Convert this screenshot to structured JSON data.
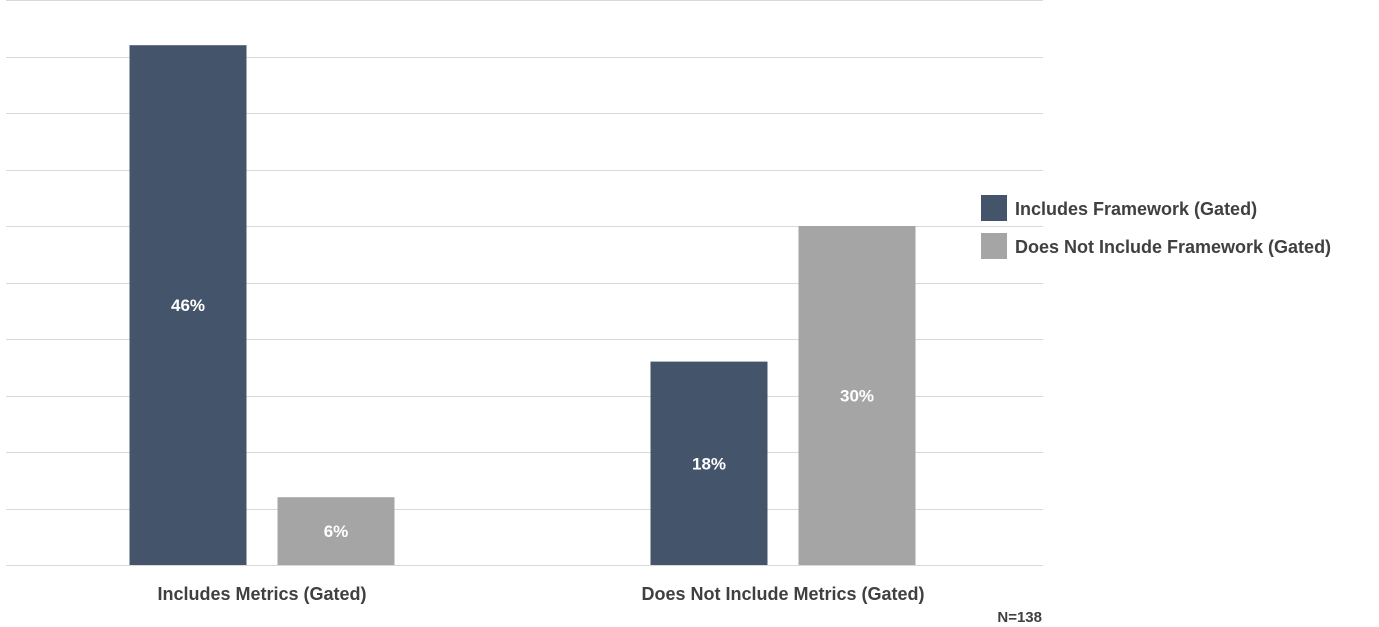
{
  "chart_data": {
    "type": "bar",
    "title": "",
    "xlabel": "",
    "ylabel": "",
    "categories": [
      "Includes Metrics (Gated)",
      "Does Not Include Metrics (Gated)"
    ],
    "series": [
      {
        "name": "Includes Framework (Gated)",
        "color": "#44546a",
        "values": [
          46,
          18
        ],
        "labels": [
          "46%",
          "18%"
        ]
      },
      {
        "name": "Does Not Include Framework (Gated)",
        "color": "#a5a5a5",
        "values": [
          6,
          30
        ],
        "labels": [
          "6%",
          "30%"
        ]
      }
    ],
    "ylim": [
      0,
      50
    ],
    "gridlines": true,
    "y_tick_labels_visible": false,
    "legend_position": "right",
    "note": "N=138"
  }
}
